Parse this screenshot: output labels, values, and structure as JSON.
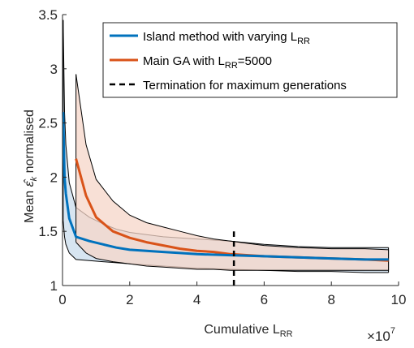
{
  "chart_data": {
    "type": "line",
    "xlabel": "Cumulative L",
    "xlabel_sub": "RR",
    "ylabel": "normalised",
    "ylabel_prefix": "Mean",
    "ylabel_symbol": "ε̂",
    "ylabel_symbol_sub": "k",
    "x_multiplier": "×10",
    "x_multiplier_exp": "7",
    "xlim": [
      0,
      10
    ],
    "ylim": [
      1,
      3.5
    ],
    "xticks": [
      0,
      2,
      4,
      6,
      8,
      10
    ],
    "xtick_labels": [
      "0",
      "2",
      "4",
      "6",
      "8",
      "10"
    ],
    "yticks": [
      1,
      1.5,
      2,
      2.5,
      3,
      3.5
    ],
    "ytick_labels": [
      "1",
      "1.5",
      "2",
      "2.5",
      "3",
      "3.5"
    ],
    "grid": false,
    "legend_position": "top-right",
    "series": [
      {
        "name": "Island method with varying L",
        "name_sub": "RR",
        "color": "#0072BD",
        "fill": "#C9DCEC",
        "x": [
          0.02,
          0.06,
          0.1,
          0.2,
          0.4,
          0.8,
          1.2,
          1.6,
          2.0,
          2.5,
          3.0,
          3.5,
          4.0,
          5.0,
          6.0,
          7.0,
          8.0,
          9.0,
          9.7
        ],
        "mean": [
          2.6,
          2.0,
          1.85,
          1.62,
          1.45,
          1.41,
          1.38,
          1.35,
          1.33,
          1.32,
          1.31,
          1.3,
          1.29,
          1.28,
          1.27,
          1.26,
          1.25,
          1.24,
          1.24
        ],
        "upper": [
          3.45,
          2.6,
          2.3,
          1.95,
          1.72,
          1.63,
          1.57,
          1.52,
          1.49,
          1.47,
          1.45,
          1.44,
          1.43,
          1.41,
          1.38,
          1.36,
          1.35,
          1.35,
          1.35
        ],
        "lower": [
          1.6,
          1.45,
          1.38,
          1.3,
          1.24,
          1.23,
          1.22,
          1.21,
          1.2,
          1.19,
          1.18,
          1.17,
          1.16,
          1.15,
          1.14,
          1.13,
          1.13,
          1.12,
          1.12
        ]
      },
      {
        "name": "Main GA with L",
        "name_sub": "RR",
        "name_suffix": "=5000",
        "color": "#D95319",
        "fill": "#F6D5C8",
        "x": [
          0.4,
          0.7,
          1.0,
          1.5,
          2.0,
          2.5,
          3.0,
          3.5,
          4.0,
          4.5,
          5.0,
          6.0,
          7.0,
          8.0,
          9.0,
          9.7
        ],
        "mean": [
          2.17,
          1.83,
          1.63,
          1.5,
          1.44,
          1.4,
          1.37,
          1.34,
          1.32,
          1.31,
          1.29,
          1.27,
          1.26,
          1.25,
          1.24,
          1.23
        ],
        "upper": [
          2.95,
          2.3,
          1.98,
          1.78,
          1.65,
          1.58,
          1.54,
          1.5,
          1.46,
          1.43,
          1.41,
          1.37,
          1.35,
          1.34,
          1.34,
          1.33
        ],
        "lower": [
          1.4,
          1.3,
          1.25,
          1.22,
          1.2,
          1.18,
          1.17,
          1.16,
          1.15,
          1.15,
          1.14,
          1.14,
          1.14,
          1.14,
          1.14,
          1.14
        ]
      }
    ],
    "termination": {
      "name": "Termination for maximum generations",
      "x": 5.1,
      "y_range": [
        1,
        1.5
      ],
      "color": "#000000"
    }
  }
}
